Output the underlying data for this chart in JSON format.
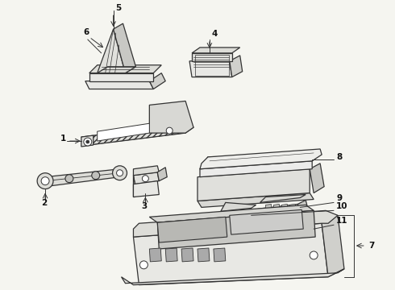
{
  "bg_color": "#f5f5f0",
  "line_color": "#333333",
  "label_color": "#111111",
  "fig_width": 4.9,
  "fig_height": 3.6,
  "dpi": 100
}
